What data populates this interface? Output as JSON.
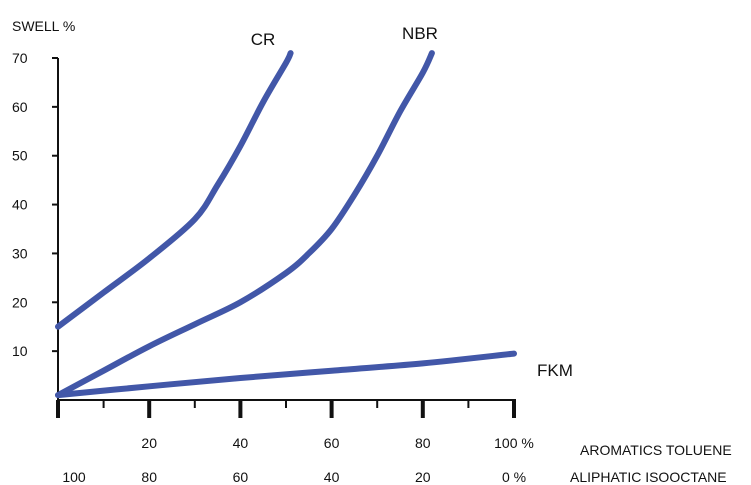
{
  "chart_data": {
    "type": "line",
    "title": "",
    "ylabel": "SWELL %",
    "ylim": [
      0,
      70
    ],
    "yticks": [
      10,
      20,
      30,
      40,
      50,
      60,
      70
    ],
    "xlim": [
      0,
      100
    ],
    "x_axis_primary": {
      "label": "AROMATICS TOLUENE",
      "ticks": [
        {
          "x": 20,
          "label": "20"
        },
        {
          "x": 40,
          "label": "40"
        },
        {
          "x": 60,
          "label": "60"
        },
        {
          "x": 80,
          "label": "80"
        },
        {
          "x": 100,
          "label": "100 %"
        }
      ]
    },
    "x_axis_secondary": {
      "label": "ALIPHATIC ISOOCTANE",
      "ticks": [
        {
          "x": 0,
          "label": "100"
        },
        {
          "x": 20,
          "label": "80"
        },
        {
          "x": 40,
          "label": "60"
        },
        {
          "x": 60,
          "label": "40"
        },
        {
          "x": 80,
          "label": "20"
        },
        {
          "x": 100,
          "label": "0 %"
        }
      ]
    },
    "grid": false,
    "legend": "series labels placed at line ends",
    "color": "#4257A8",
    "series": [
      {
        "name": "CR",
        "x": [
          0,
          10,
          20,
          30,
          35,
          40,
          45,
          50,
          51
        ],
        "y": [
          15,
          22,
          29,
          37,
          44,
          52,
          61,
          69,
          71
        ]
      },
      {
        "name": "NBR",
        "x": [
          0,
          10,
          20,
          30,
          40,
          50,
          55,
          60,
          65,
          70,
          75,
          80,
          82
        ],
        "y": [
          1,
          6,
          11,
          15.5,
          20,
          26,
          30,
          35,
          42,
          50,
          59,
          67,
          71
        ]
      },
      {
        "name": "FKM",
        "x": [
          0,
          20,
          40,
          60,
          80,
          100
        ],
        "y": [
          1,
          2.8,
          4.5,
          6,
          7.5,
          9.5
        ]
      }
    ]
  }
}
